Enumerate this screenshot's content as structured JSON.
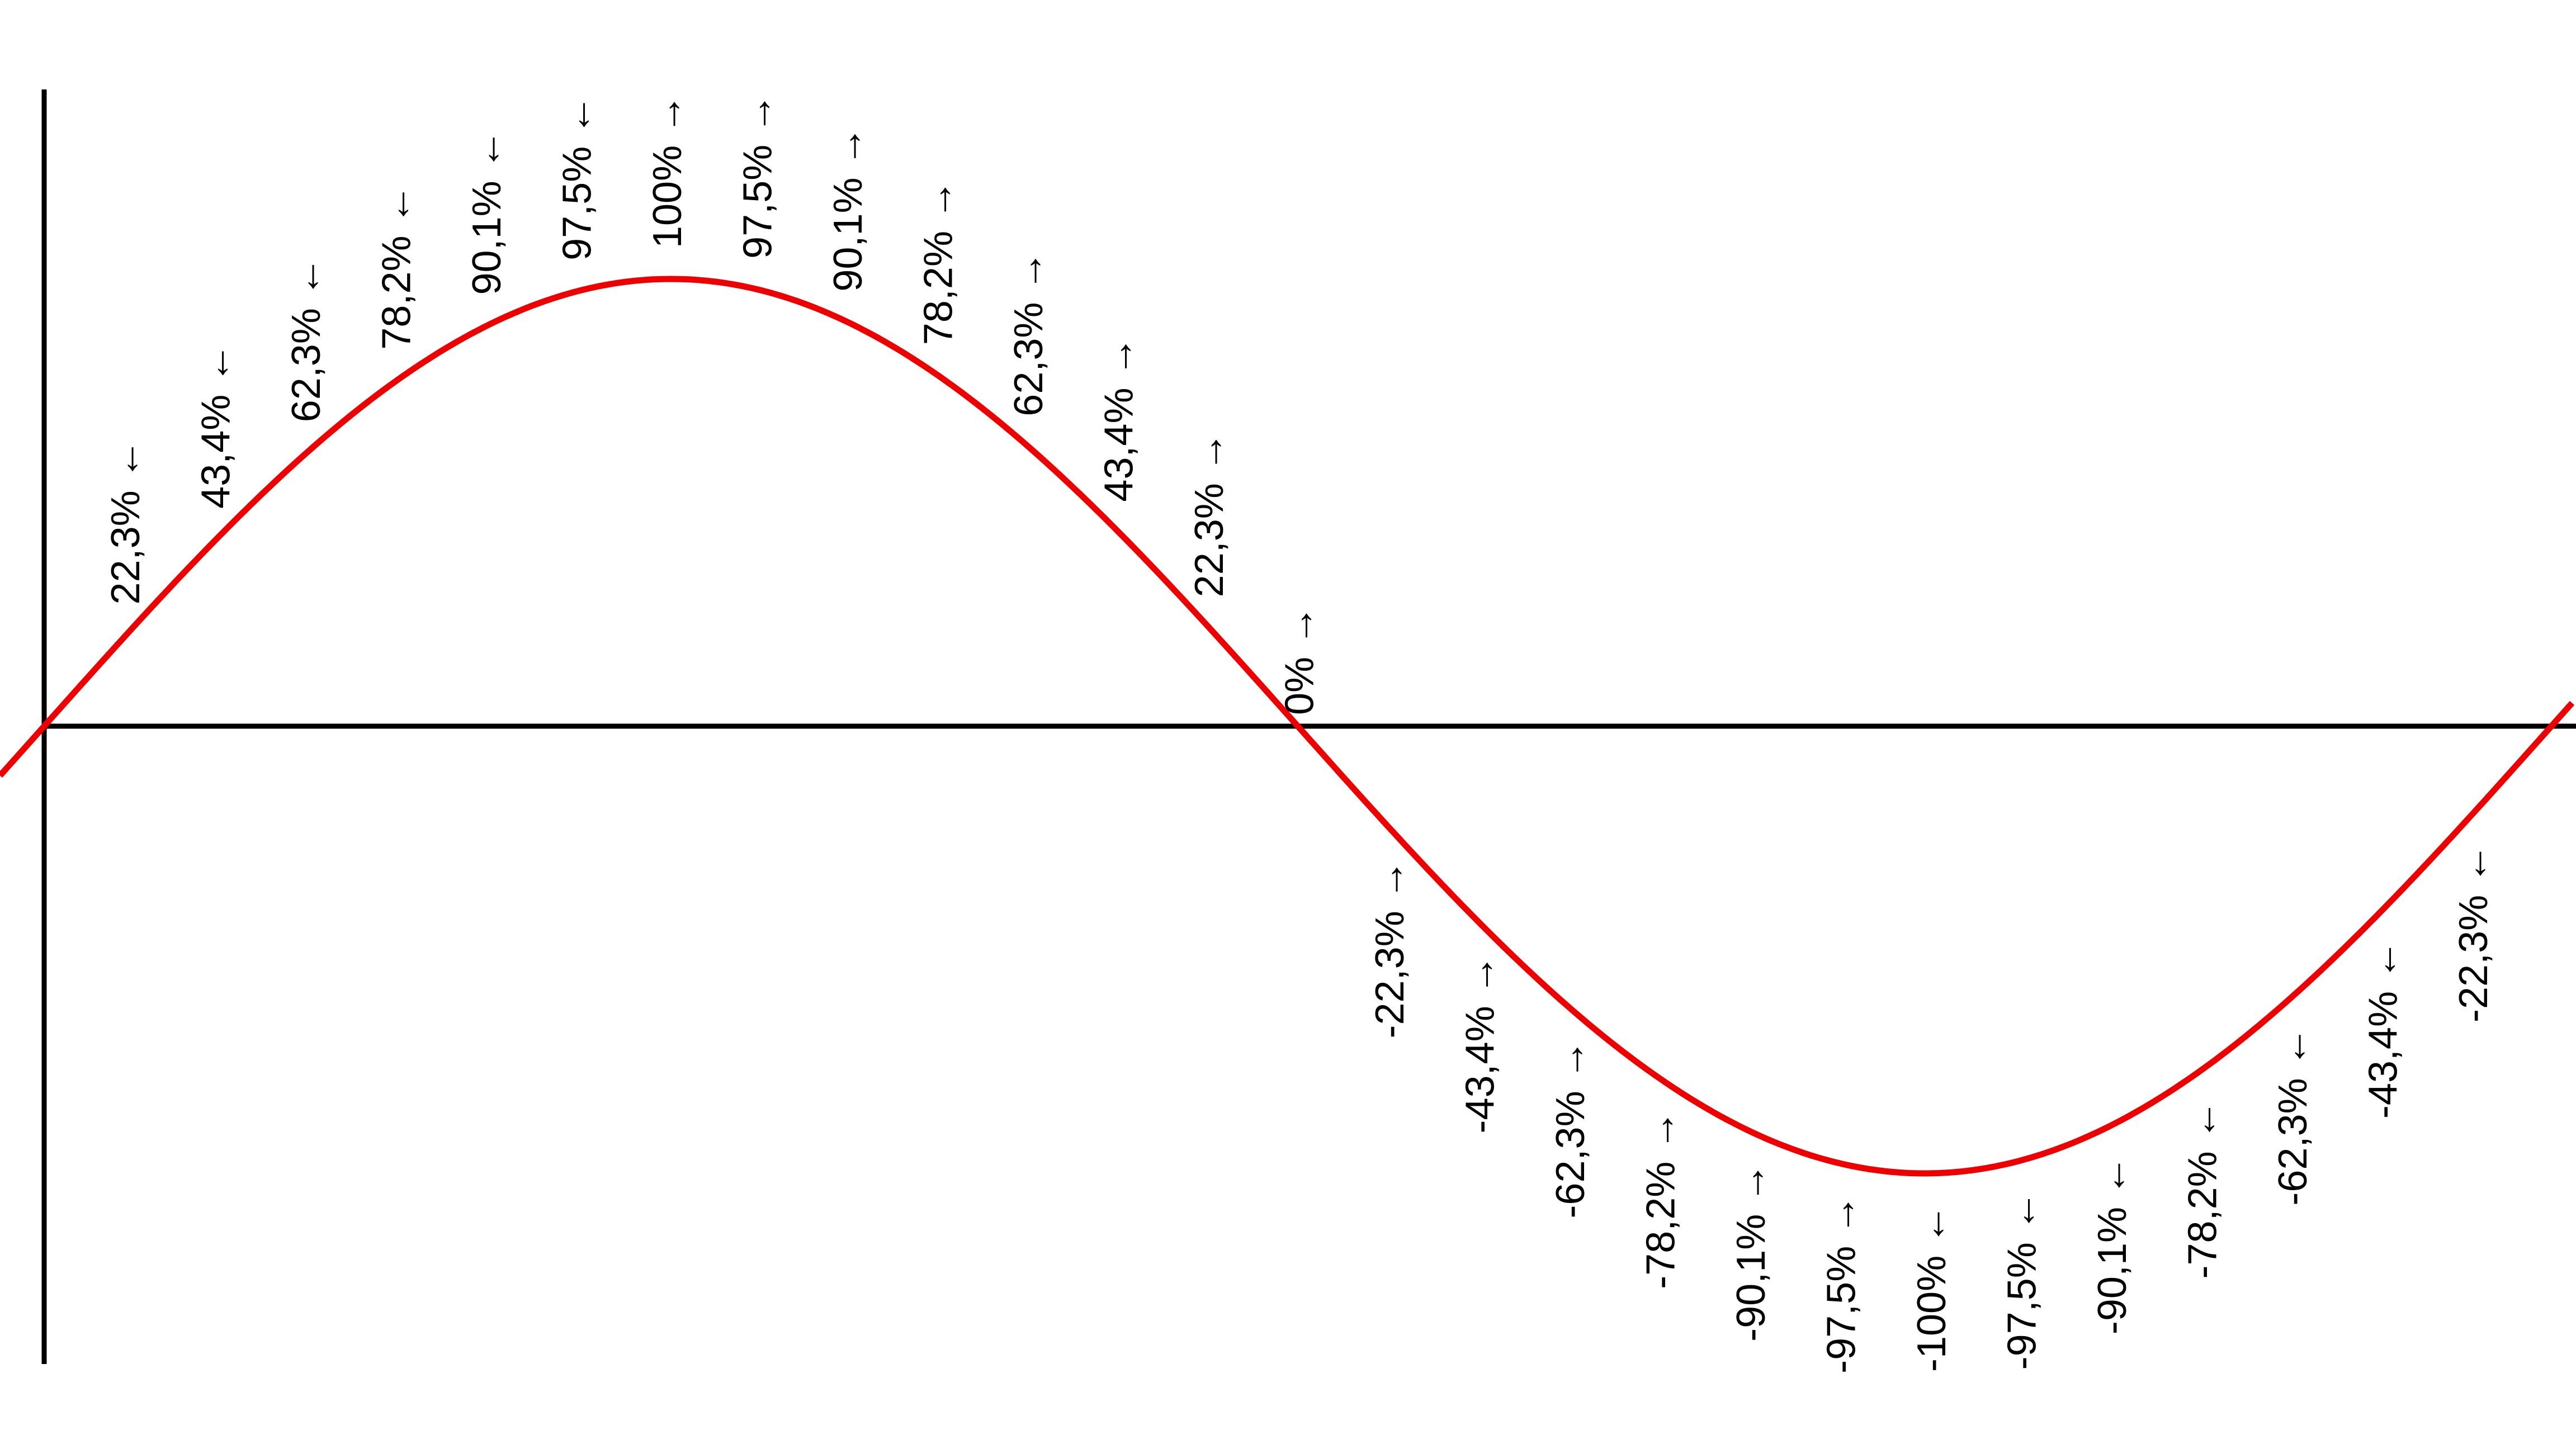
{
  "chart_data": {
    "type": "line",
    "curve": "sine",
    "title": "",
    "xlabel": "",
    "ylabel": "",
    "grid": false,
    "ylim": [
      -100,
      100
    ],
    "curve_color": "#ee0000",
    "axis_color": "#000000",
    "labels": [
      {
        "text": "22,3%",
        "arrow": "up"
      },
      {
        "text": "43,4%",
        "arrow": "up"
      },
      {
        "text": "62,3%",
        "arrow": "up"
      },
      {
        "text": "78,2%",
        "arrow": "up"
      },
      {
        "text": "90,1%",
        "arrow": "up"
      },
      {
        "text": "97,5%",
        "arrow": "up"
      },
      {
        "text": "100%",
        "arrow": "down"
      },
      {
        "text": "97,5%",
        "arrow": "down"
      },
      {
        "text": "90,1%",
        "arrow": "down"
      },
      {
        "text": "78,2%",
        "arrow": "down"
      },
      {
        "text": "62,3%",
        "arrow": "down"
      },
      {
        "text": "43,4%",
        "arrow": "down"
      },
      {
        "text": "22,3%",
        "arrow": "down"
      },
      {
        "text": "0%",
        "arrow": "down"
      },
      {
        "text": "-22,3%",
        "arrow": "down"
      },
      {
        "text": "-43,4%",
        "arrow": "down"
      },
      {
        "text": "-62,3%",
        "arrow": "down"
      },
      {
        "text": "-78,2%",
        "arrow": "down"
      },
      {
        "text": "-90,1%",
        "arrow": "down"
      },
      {
        "text": "-97,5%",
        "arrow": "down"
      },
      {
        "text": "-100%",
        "arrow": "up"
      },
      {
        "text": "-97,5%",
        "arrow": "up"
      },
      {
        "text": "-90,1%",
        "arrow": "up"
      },
      {
        "text": "-78,2%",
        "arrow": "up"
      },
      {
        "text": "-62,3%",
        "arrow": "up"
      },
      {
        "text": "-43,4%",
        "arrow": "up"
      },
      {
        "text": "-22,3%",
        "arrow": "up"
      }
    ]
  }
}
